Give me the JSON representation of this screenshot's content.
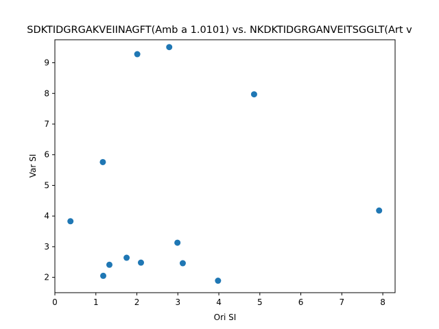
{
  "chart_data": {
    "type": "scatter",
    "title": "SDKTIDGRGAKVEIINAGFT(Amb a 1.0101) vs. NKDKTIDGRGANVEITSGGLT(Art v",
    "xlabel": "Ori SI",
    "ylabel": "Var SI",
    "xlim": [
      0,
      8.3
    ],
    "ylim": [
      1.5,
      9.75
    ],
    "xticks": [
      0,
      1,
      2,
      3,
      4,
      5,
      6,
      7,
      8
    ],
    "yticks": [
      2,
      3,
      4,
      5,
      6,
      7,
      8,
      9
    ],
    "grid": false,
    "marker_color": "#1f77b4",
    "series": [
      {
        "x": [
          0.38,
          1.17,
          1.18,
          1.33,
          1.75,
          2.01,
          2.1,
          2.79,
          2.99,
          3.12,
          3.98,
          4.86,
          7.91
        ],
        "y": [
          3.83,
          5.76,
          2.05,
          2.41,
          2.64,
          9.28,
          2.48,
          9.51,
          3.13,
          2.46,
          1.89,
          7.97,
          4.18
        ]
      }
    ]
  }
}
